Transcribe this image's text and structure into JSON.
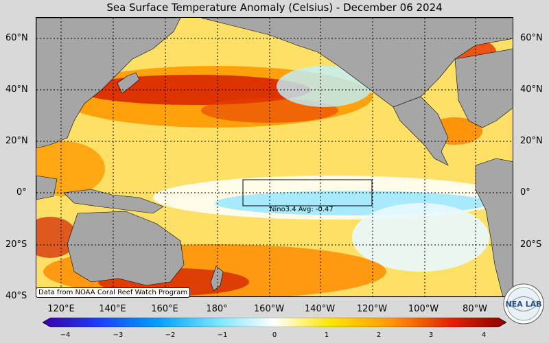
{
  "title": "Sea Surface Temperature Anomaly (Celsius) - December 06 2024",
  "credit": "Data from NOAA Coral Reef Watch Program",
  "nino_label": "Nino3.4 Avg: -0.47",
  "lat_labels": [
    "60°N",
    "40°N",
    "20°N",
    "0°",
    "20°S",
    "40°S"
  ],
  "lon_labels": [
    "120°E",
    "140°E",
    "160°E",
    "180°",
    "160°W",
    "140°W",
    "120°W",
    "100°W",
    "80°W"
  ],
  "colorbar": {
    "ticks": [
      "−4",
      "−3",
      "−2",
      "−1",
      "0",
      "1",
      "2",
      "3",
      "4"
    ],
    "min": -4,
    "max": 4
  },
  "logo_text": "NEA LAB",
  "colors": {
    "land": "#a6a6a6",
    "warm_strong": "#c81400",
    "warm": "#ff9a00",
    "mild_warm": "#ffe000",
    "neutral": "#ffffff",
    "cool": "#9fe8ff",
    "cold": "#2a6bff",
    "very_cold": "#3a00a8"
  }
}
